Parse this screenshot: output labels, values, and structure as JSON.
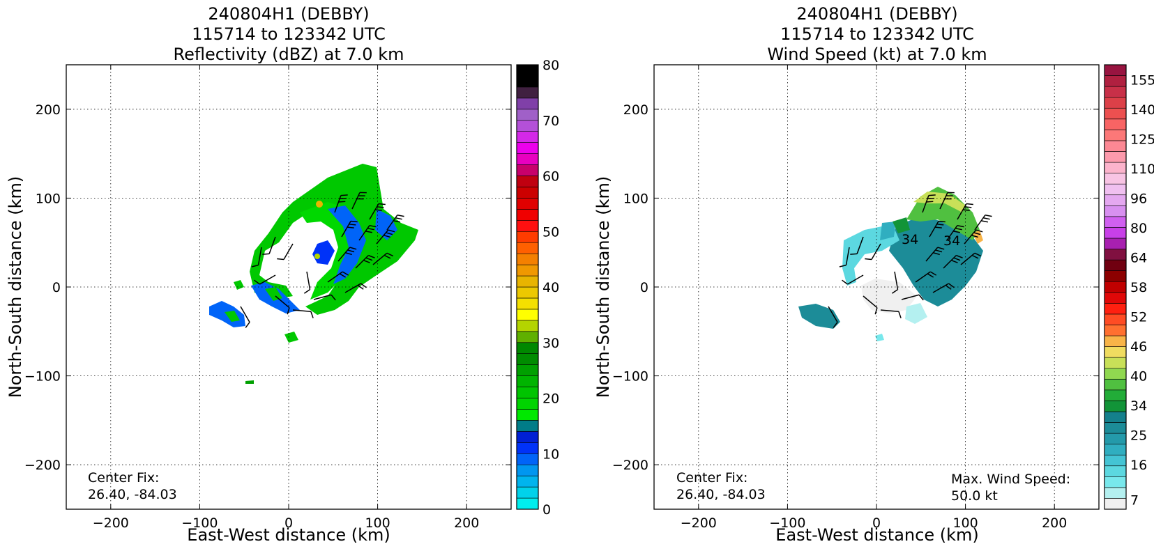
{
  "chart_data": [
    {
      "type": "heatmap",
      "title_lines": [
        "240804H1 (DEBBY)",
        "115714 to 123342 UTC",
        "Reflectivity (dBZ) at 7.0 km"
      ],
      "xlabel": "East-West distance (km)",
      "ylabel": "North-South distance (km)",
      "xlim": [
        -250,
        250
      ],
      "ylim": [
        -250,
        250
      ],
      "xticks": [
        -200,
        -100,
        0,
        100,
        200
      ],
      "yticks": [
        -200,
        -100,
        0,
        100,
        200
      ],
      "grid": true,
      "annotation": {
        "label": "Center Fix:",
        "value": "26.40, -84.03"
      },
      "colorbar": {
        "min": 0,
        "max": 80,
        "ticks": [
          "0",
          "10",
          "20",
          "30",
          "40",
          "50",
          "60",
          "70",
          "80"
        ],
        "colors": [
          "#00eeee",
          "#00d2ea",
          "#00b4ee",
          "#0096f0",
          "#0064f8",
          "#0032f8",
          "#0020d4",
          "#007c88",
          "#00e800",
          "#00d400",
          "#00c400",
          "#00b400",
          "#00a000",
          "#008c00",
          "#008800",
          "#60b000",
          "#b4d400",
          "#ffff00",
          "#f4e000",
          "#ecc800",
          "#e8b400",
          "#f09800",
          "#f48000",
          "#ff6000",
          "#ff3c00",
          "#ff1010",
          "#f00000",
          "#e00000",
          "#cc0000",
          "#c00010",
          "#c8006c",
          "#e800c0",
          "#ec00ec",
          "#d428e8",
          "#b450d8",
          "#a060c8",
          "#8040a8",
          "#402040",
          "#000000",
          "#000000"
        ]
      }
    },
    {
      "type": "heatmap",
      "title_lines": [
        "240804H1 (DEBBY)",
        "115714 to 123342 UTC",
        "Wind Speed (kt) at 7.0 km"
      ],
      "xlabel": "East-West distance (km)",
      "ylabel": "North-South distance (km)",
      "xlim": [
        -250,
        250
      ],
      "ylim": [
        -250,
        250
      ],
      "xticks": [
        -200,
        -100,
        0,
        100,
        200
      ],
      "yticks": [
        -200,
        -100,
        0,
        100,
        200
      ],
      "grid": true,
      "annotation": {
        "label": "Center Fix:",
        "value": "26.40, -84.03"
      },
      "max_wind": {
        "label": "Max. Wind Speed:",
        "value": "50.0 kt"
      },
      "contour_labels": [
        "34",
        "34"
      ],
      "colorbar": {
        "ticks": [
          "7",
          "16",
          "25",
          "34",
          "40",
          "46",
          "52",
          "58",
          "64",
          "80",
          "96",
          "110",
          "125",
          "140",
          "155"
        ],
        "colors": [
          "#f0f0f0",
          "#b4f0f0",
          "#78e8ec",
          "#5cd8e0",
          "#44c4d4",
          "#30aec0",
          "#249aaa",
          "#1c8c98",
          "#14808c",
          "#129438",
          "#22ac38",
          "#50c040",
          "#90d850",
          "#c8e058",
          "#f0dc60",
          "#f8b448",
          "#ff7030",
          "#ff4c24",
          "#ff2010",
          "#e00808",
          "#c00000",
          "#8c0000",
          "#700010",
          "#801040",
          "#a820b0",
          "#c840e8",
          "#d060f0",
          "#d890f0",
          "#e4a8f0",
          "#f0c0f0",
          "#f8c4e4",
          "#fcb4cc",
          "#fc9aac",
          "#fc8894",
          "#fc7878",
          "#f86464",
          "#ec5050",
          "#dc4048",
          "#c83048",
          "#b02040",
          "#981440"
        ]
      }
    }
  ]
}
